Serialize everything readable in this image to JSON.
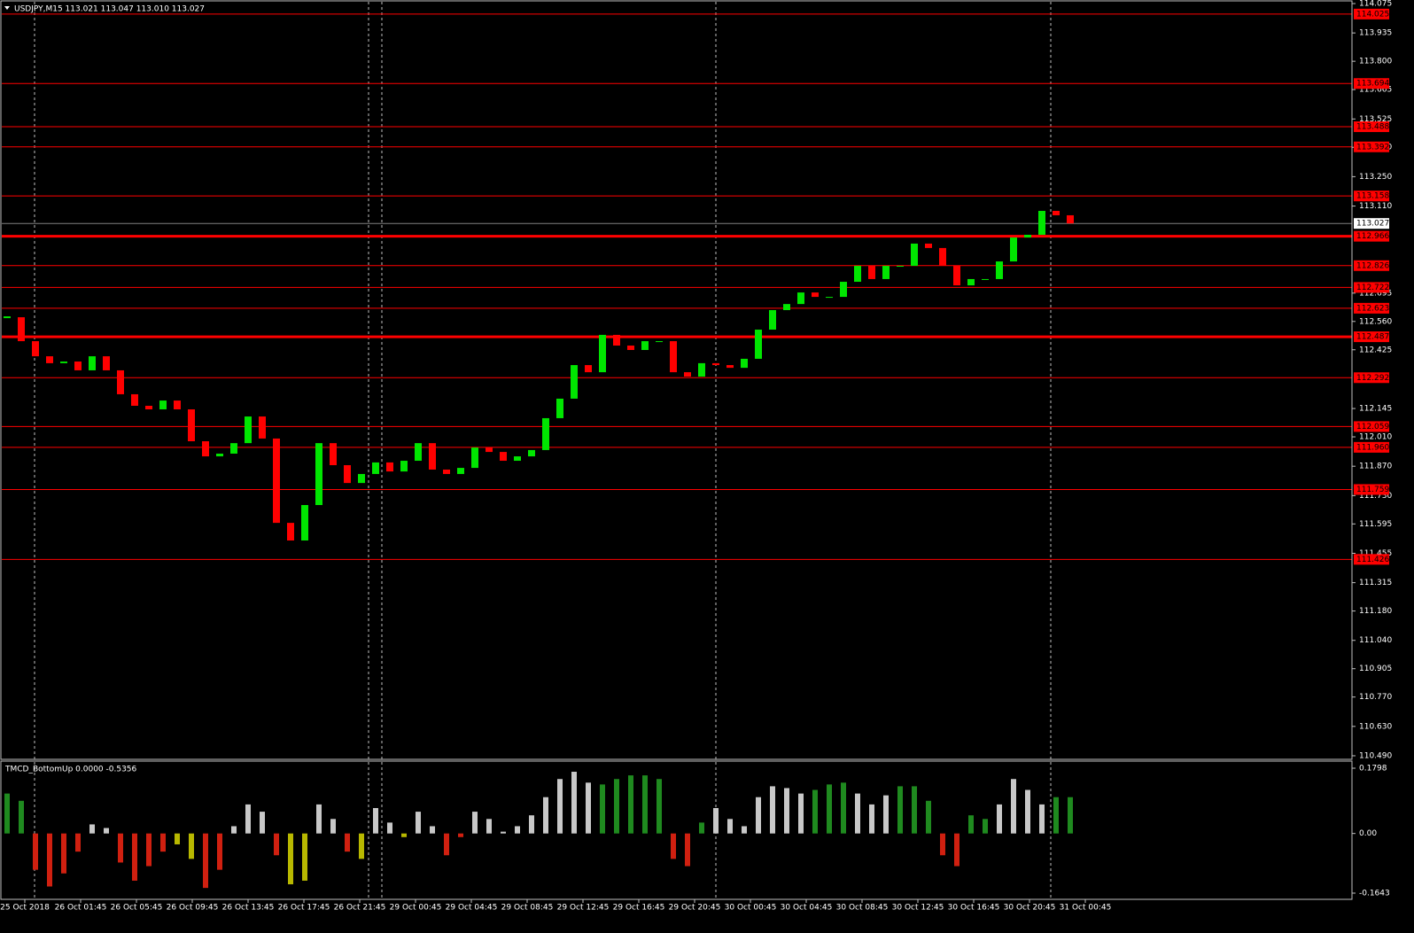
{
  "chart_data": [
    {
      "type": "candlestick",
      "title": "USDJPY,M15  113.021 113.047 113.010 113.027",
      "up_color": "#00e600",
      "down_color": "#ff0000",
      "closes": [
        112.58,
        112.466,
        112.394,
        112.361,
        112.369,
        112.327,
        112.394,
        112.327,
        112.213,
        112.158,
        112.141,
        112.183,
        112.141,
        111.989,
        111.917,
        111.93,
        111.98,
        112.107,
        112.002,
        111.6,
        111.516,
        111.685,
        111.98,
        111.875,
        111.79,
        111.833,
        111.888,
        111.845,
        111.896,
        111.98,
        111.854,
        111.833,
        111.862,
        111.959,
        111.938,
        111.896,
        111.917,
        111.947,
        112.099,
        112.192,
        112.352,
        112.318,
        112.496,
        112.445,
        112.424,
        112.466,
        112.466,
        112.318,
        112.297,
        112.361,
        112.352,
        112.339,
        112.382,
        112.521,
        112.614,
        112.643,
        112.698,
        112.677,
        112.677,
        112.749,
        112.825,
        112.762,
        112.825,
        112.825,
        112.931,
        112.91,
        112.825,
        112.732,
        112.762,
        112.762,
        112.846,
        112.96,
        112.973,
        113.087,
        113.066,
        113.027
      ],
      "ylim": [
        110.473,
        114.092
      ],
      "yticks": [
        114.075,
        113.935,
        {
          "value": 113.8,
          "label": "113.800"
        },
        113.665,
        113.525,
        {
          "value": 113.39,
          "label": "113.390"
        },
        {
          "value": 113.25,
          "label": "113.250"
        },
        {
          "value": 113.11,
          "label": "113.110"
        },
        112.695,
        {
          "value": 112.56,
          "label": "112.560"
        },
        112.425,
        112.145,
        {
          "value": 112.01,
          "label": "112.010"
        },
        {
          "value": 111.87,
          "label": "111.870"
        },
        {
          "value": 111.73,
          "label": "111.730"
        },
        111.595,
        111.455,
        111.315,
        {
          "value": 111.18,
          "label": "111.180"
        },
        {
          "value": 111.04,
          "label": "111.040"
        },
        110.905,
        {
          "value": 110.77,
          "label": "110.770"
        },
        {
          "value": 110.63,
          "label": "110.630"
        },
        {
          "value": 110.49,
          "label": "110.490"
        }
      ],
      "level_color": "#ff0000",
      "levels": [
        114.025,
        113.694,
        113.488,
        113.392,
        113.158,
        {
          "value": 112.966,
          "thick": true
        },
        112.826,
        112.722,
        112.623,
        {
          "value": 112.487,
          "thick": true
        },
        112.292,
        112.059,
        {
          "value": 111.96,
          "label": "111.960"
        },
        111.759,
        111.426
      ],
      "last": 113.027
    },
    {
      "type": "bar",
      "title": "TMCD_BottomUp 0.0000 -0.5356",
      "ylim": [
        -0.1814,
        0.1969
      ],
      "yticks": [
        0.1798,
        {
          "value": 0,
          "label": "0.00"
        },
        -0.1643
      ],
      "values": [
        0.11,
        0.09,
        -0.1,
        -0.146,
        -0.11,
        -0.05,
        0.025,
        0.015,
        -0.08,
        -0.13,
        -0.09,
        -0.05,
        -0.03,
        -0.07,
        -0.15,
        -0.1,
        0.02,
        0.08,
        0.06,
        -0.06,
        -0.14,
        -0.13,
        0.08,
        0.04,
        -0.05,
        -0.07,
        0.07,
        0.03,
        -0.01,
        0.06,
        0.02,
        -0.06,
        -0.01,
        0.06,
        0.04,
        0.005,
        0.02,
        0.05,
        0.1,
        0.15,
        0.17,
        0.14,
        0.135,
        0.15,
        0.16,
        0.16,
        0.15,
        -0.07,
        -0.09,
        0.03,
        0.07,
        0.04,
        0.02,
        0.1,
        0.13,
        0.125,
        0.11,
        0.12,
        0.135,
        0.14,
        0.11,
        0.08,
        0.105,
        0.13,
        0.13,
        0.09,
        -0.06,
        -0.09,
        0.05,
        0.04,
        0.08,
        0.15,
        0.12,
        0.08,
        0.1,
        0.1
      ],
      "colors": [
        "#1f8a1f",
        "#1f8a1f",
        "#d02010",
        "#d02010",
        "#d02010",
        "#d02010",
        "#c8c8c8",
        "#c8c8c8",
        "#d02010",
        "#d02010",
        "#d02010",
        "#d02010",
        "#b8b800",
        "#b8b800",
        "#d02010",
        "#d02010",
        "#c8c8c8",
        "#c8c8c8",
        "#c8c8c8",
        "#d02010",
        "#b8b800",
        "#b8b800",
        "#c8c8c8",
        "#c8c8c8",
        "#d02010",
        "#b8b800",
        "#c8c8c8",
        "#c8c8c8",
        "#b8b800",
        "#c8c8c8",
        "#c8c8c8",
        "#d02010",
        "#d02010",
        "#c8c8c8",
        "#c8c8c8",
        "#c8c8c8",
        "#c8c8c8",
        "#c8c8c8",
        "#c8c8c8",
        "#c8c8c8",
        "#c8c8c8",
        "#c8c8c8",
        "#1f8a1f",
        "#1f8a1f",
        "#1f8a1f",
        "#1f8a1f",
        "#1f8a1f",
        "#d02010",
        "#d02010",
        "#1f8a1f",
        "#c8c8c8",
        "#c8c8c8",
        "#c8c8c8",
        "#c8c8c8",
        "#c8c8c8",
        "#c8c8c8",
        "#c8c8c8",
        "#1f8a1f",
        "#1f8a1f",
        "#1f8a1f",
        "#c8c8c8",
        "#c8c8c8",
        "#c8c8c8",
        "#1f8a1f",
        "#1f8a1f",
        "#1f8a1f",
        "#d02010",
        "#d02010",
        "#1f8a1f",
        "#1f8a1f",
        "#c8c8c8",
        "#c8c8c8",
        "#c8c8c8",
        "#c8c8c8",
        "#1f8a1f",
        "#1f8a1f"
      ],
      "x_labels": [
        "25 Oct 2018",
        "26 Oct 01:45",
        "26 Oct 05:45",
        "26 Oct 09:45",
        "26 Oct 13:45",
        "26 Oct 17:45",
        "26 Oct 21:45",
        "29 Oct 00:45",
        "29 Oct 04:45",
        "29 Oct 08:45",
        "29 Oct 12:45",
        "29 Oct 16:45",
        "29 Oct 20:45",
        "30 Oct 00:45",
        "30 Oct 04:45",
        "30 Oct 08:45",
        "30 Oct 12:45",
        "30 Oct 16:45",
        "30 Oct 20:45",
        "31 Oct 00:45"
      ]
    }
  ]
}
